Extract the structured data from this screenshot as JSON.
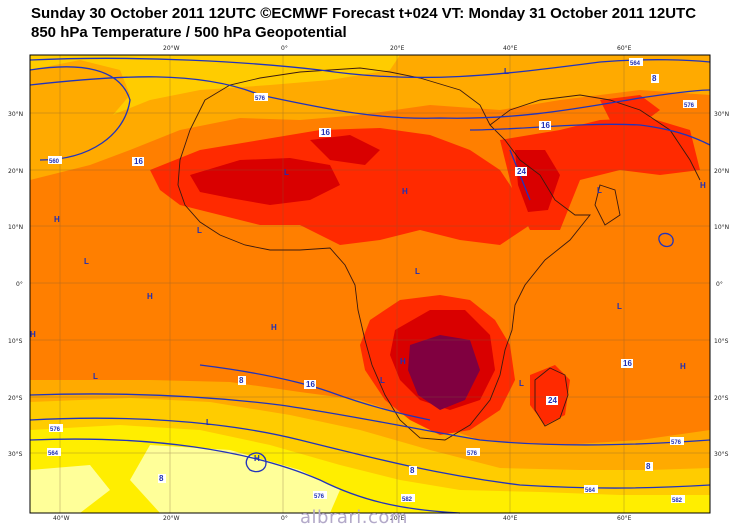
{
  "title_line1": "Sunday 30 October 2011 12UTC ©ECMWF Forecast t+024 VT: Monday 31 October 2011 12UTC",
  "title_line2": "850 hPa Temperature / 500 hPa Geopotential",
  "watermark": "albrari.com",
  "lat_labels_left": [
    "30°N",
    "20°N",
    "10°N",
    "0°",
    "10°S",
    "20°S",
    "30°S"
  ],
  "lat_labels_right": [
    "30°N",
    "20°N",
    "10°N",
    "0°",
    "10°S",
    "20°S",
    "30°S"
  ],
  "lon_labels_top": [
    "20°W",
    "0°",
    "20°E",
    "40°E",
    "60°E"
  ],
  "lon_labels_bottom": [
    "40°W",
    "20°W",
    "0°",
    "20°E",
    "40°E",
    "60°E"
  ],
  "pressure_centers": [
    "H",
    "H",
    "H",
    "H",
    "H",
    "H",
    "H",
    "H",
    "H",
    "L",
    "L",
    "L",
    "L",
    "L",
    "L",
    "L",
    "L",
    "L",
    "L",
    "L"
  ],
  "contour_labels": [
    "16",
    "16",
    "16",
    "16",
    "16",
    "24",
    "24",
    "8",
    "8",
    "8",
    "8",
    "8",
    "576",
    "576",
    "576",
    "576",
    "560",
    "564",
    "564",
    "564",
    "576",
    "576",
    "582",
    "582"
  ],
  "colors": {
    "temp_lt_0": "#ffff99",
    "temp_4": "#ffee00",
    "temp_8": "#ffcc00",
    "temp_12": "#ffaa00",
    "temp_16": "#ff7f00",
    "temp_20": "#ff2a00",
    "temp_24": "#d90000",
    "temp_28": "#800040",
    "contour": "#2233bb",
    "coast": "#3a1a10",
    "grid": "#6a4a30"
  }
}
